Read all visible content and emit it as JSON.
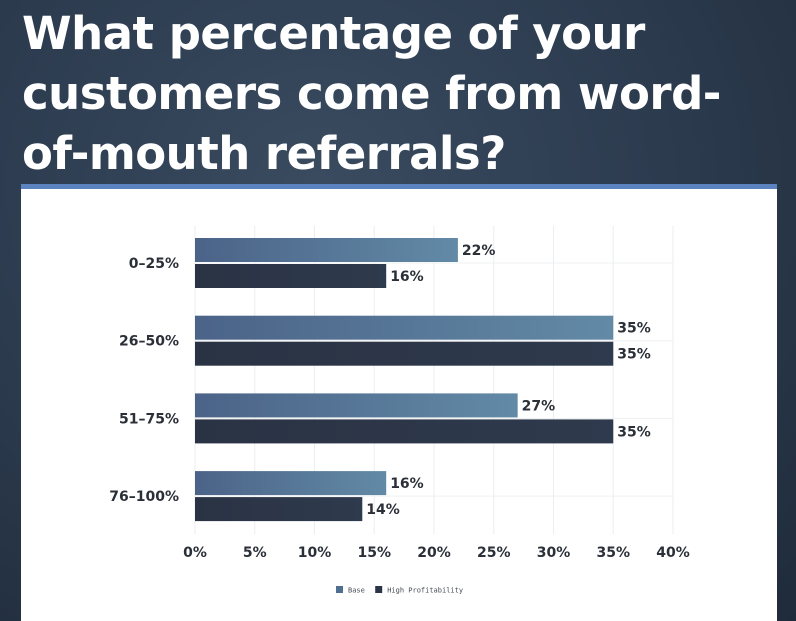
{
  "title": "What percentage of your customers come from word-of-mouth referrals?",
  "colors": {
    "base": "#4f6f91",
    "high_profitability": "#2b3547",
    "accent": "#5b83c0"
  },
  "chart_data": {
    "type": "bar",
    "orientation": "horizontal",
    "categories": [
      "0–25%",
      "26–50%",
      "51–75%",
      "76–100%"
    ],
    "series": [
      {
        "name": "Base",
        "values": [
          22,
          35,
          27,
          16
        ]
      },
      {
        "name": "High Profitability",
        "values": [
          16,
          35,
          35,
          14
        ]
      }
    ],
    "xlim": [
      0,
      40
    ],
    "xticks": [
      "0%",
      "5%",
      "10%",
      "15%",
      "20%",
      "25%",
      "30%",
      "35%",
      "40%"
    ],
    "value_suffix": "%",
    "grid": true,
    "legend_position": "bottom-center"
  }
}
